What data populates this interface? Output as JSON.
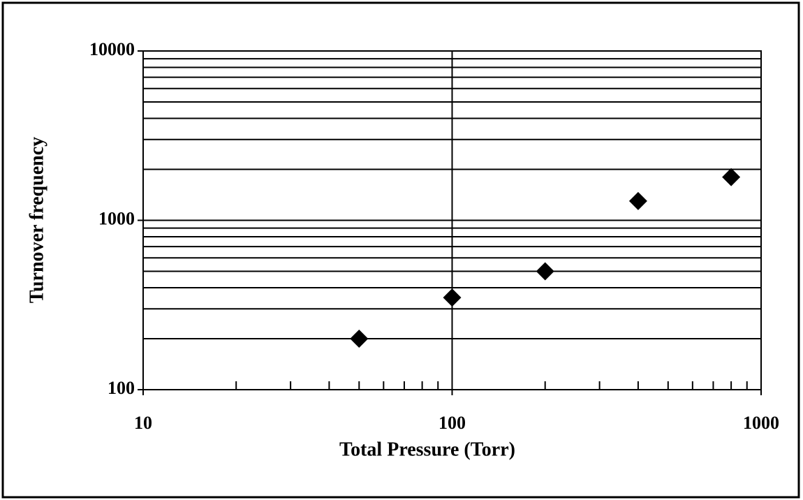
{
  "chart_data": {
    "type": "scatter",
    "xlabel": "Total Pressure (Torr)",
    "ylabel": "Turnover frequency",
    "x": [
      50,
      100,
      200,
      400,
      800
    ],
    "values": [
      200,
      350,
      500,
      1300,
      1800
    ],
    "color": "#000000",
    "marker": "diamond",
    "xlim": [
      10,
      1000
    ],
    "ylim": [
      100,
      10000
    ],
    "xticks": [
      10,
      100,
      1000
    ],
    "yticks": [
      100,
      1000,
      10000
    ],
    "xlog": true,
    "ylog": true,
    "grid": true
  }
}
